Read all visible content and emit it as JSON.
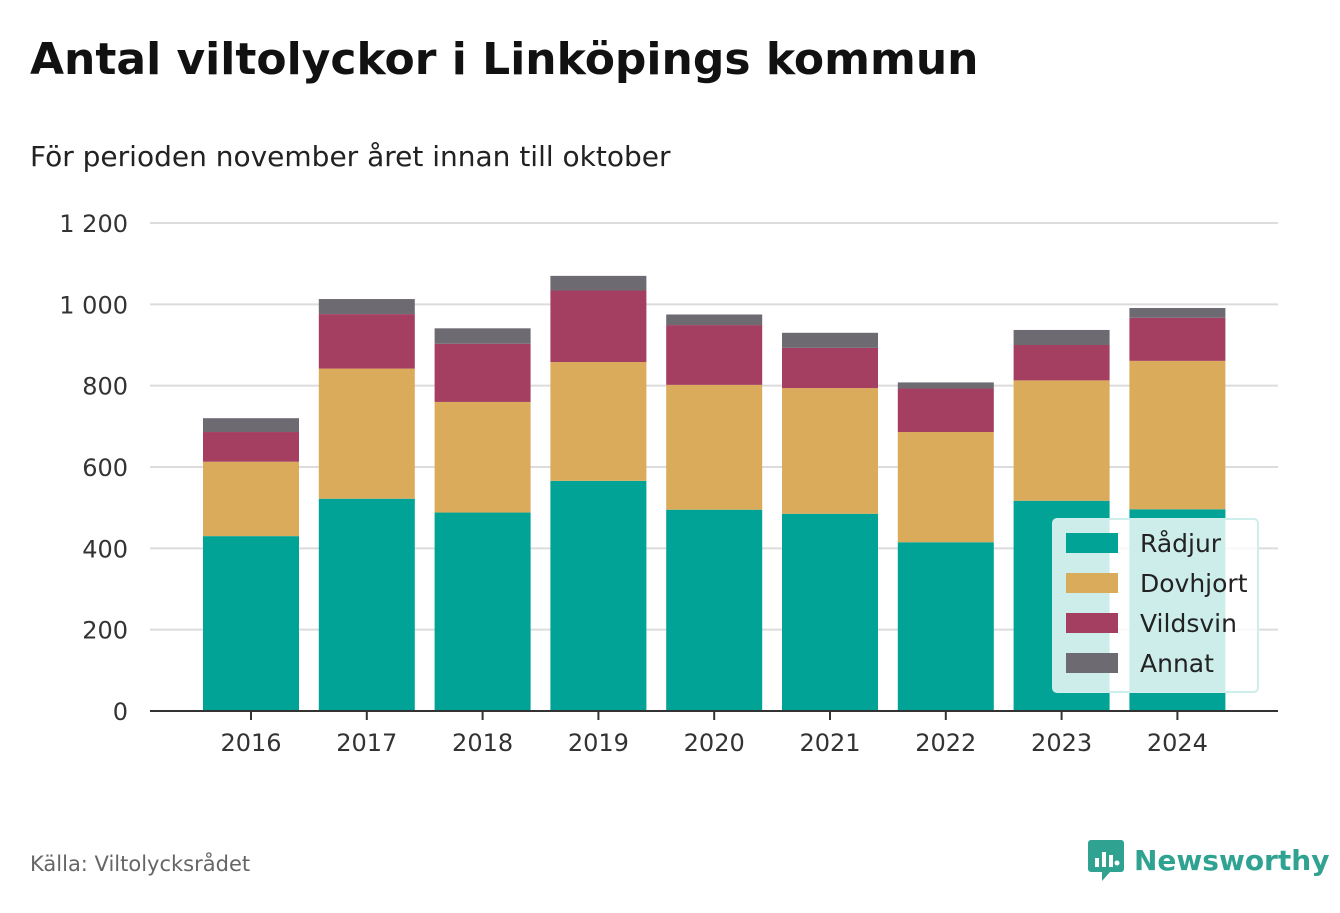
{
  "title": "Antal viltolyckor i Linköpings kommun",
  "subtitle": "För perioden november året innan till oktober",
  "source": "Källa: Viltolycksrådet",
  "brand": {
    "name": "Newsworthy",
    "icon": "newsworthy-logo-icon",
    "color": "#2fa291"
  },
  "chart_data": {
    "type": "bar",
    "stacked": true,
    "categories": [
      "2016",
      "2017",
      "2018",
      "2019",
      "2020",
      "2021",
      "2022",
      "2023",
      "2024"
    ],
    "series": [
      {
        "name": "Rådjur",
        "color": "#00a396",
        "values": [
          430,
          522,
          488,
          566,
          495,
          485,
          415,
          517,
          496
        ]
      },
      {
        "name": "Dovhjort",
        "color": "#daab5a",
        "values": [
          183,
          320,
          272,
          292,
          307,
          309,
          271,
          296,
          365
        ]
      },
      {
        "name": "Vildsvin",
        "color": "#a53f62",
        "values": [
          73,
          134,
          143,
          176,
          147,
          99,
          107,
          87,
          106
        ]
      },
      {
        "name": "Annat",
        "color": "#6d6a72",
        "values": [
          34,
          37,
          38,
          36,
          26,
          37,
          15,
          37,
          24
        ]
      }
    ],
    "ylim": [
      0,
      1200
    ],
    "yticks": [
      0,
      200,
      400,
      600,
      800,
      1000,
      1200
    ],
    "ytick_labels": [
      "0",
      "200",
      "400",
      "600",
      "800",
      "1 000",
      "1 200"
    ],
    "grid": true,
    "legend": "bottom-right"
  }
}
